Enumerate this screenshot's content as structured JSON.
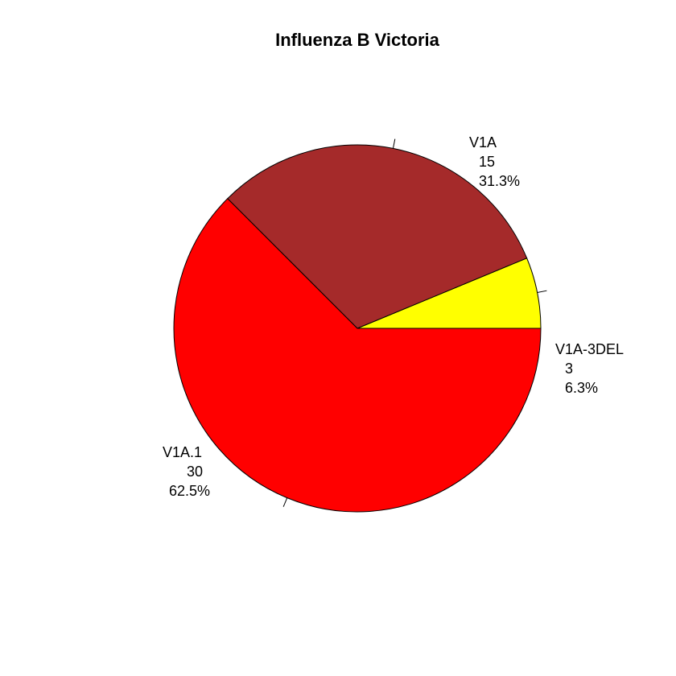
{
  "chart_data": {
    "type": "pie",
    "title": "Influenza B Victoria",
    "categories": [
      "V1A-3DEL",
      "V1A",
      "V1A.1"
    ],
    "values": [
      3,
      15,
      30
    ],
    "percent_labels": [
      "6.3%",
      "31.3%",
      "62.5%"
    ],
    "value_labels": [
      "3",
      "15",
      "30"
    ],
    "colors": [
      "#ffff00",
      "#a52a2a",
      "#ff0000"
    ],
    "start_angle": "0 degrees (3 o'clock)",
    "direction": "counter-clockwise",
    "legend": "none"
  }
}
